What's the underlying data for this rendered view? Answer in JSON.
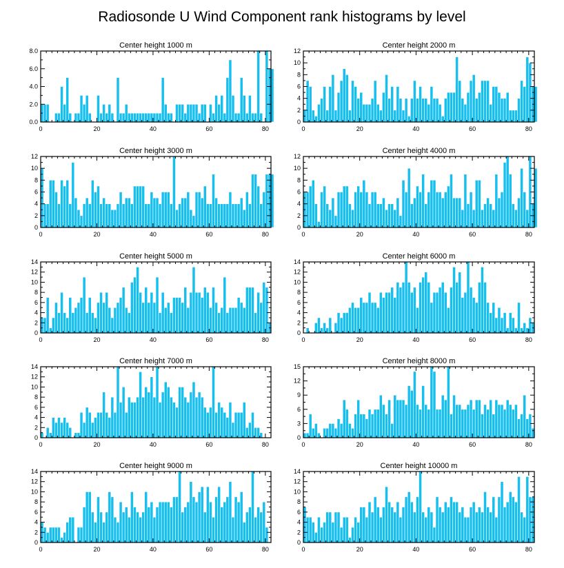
{
  "figure": {
    "title": "Radiosonde U Wind Component rank histograms by level",
    "bar_color": "#17bfee",
    "background": "#ffffff"
  },
  "chart_data": [
    {
      "type": "bar",
      "title": "Center height 1000 m",
      "xlim": [
        0,
        82
      ],
      "ylim": [
        0,
        8
      ],
      "xticks": [
        0,
        20,
        40,
        60,
        80
      ],
      "yticks": [
        0,
        2,
        4,
        6,
        8
      ],
      "ytick_labels": [
        "0.0",
        "2.0",
        "4.0",
        "6.0",
        "8.0"
      ],
      "values": [
        2,
        2,
        2,
        0,
        0,
        1,
        1,
        4,
        2,
        5,
        1,
        0,
        1,
        1,
        3,
        2,
        3,
        1,
        0,
        0,
        3,
        1,
        2,
        1,
        2,
        1,
        0,
        5,
        1,
        1,
        2,
        1,
        1,
        1,
        1,
        1,
        1,
        1,
        1,
        1,
        1,
        1,
        1,
        5,
        2,
        1,
        1,
        0,
        2,
        2,
        2,
        1,
        2,
        2,
        2,
        2,
        1,
        2,
        2,
        0,
        2,
        1,
        3,
        2,
        3,
        1,
        5,
        7,
        3,
        1,
        1,
        5,
        3,
        1,
        3,
        1,
        1,
        8,
        1,
        0,
        8,
        6,
        6
      ]
    },
    {
      "type": "bar",
      "title": "Center height 2000 m",
      "xlim": [
        0,
        82
      ],
      "ylim": [
        0,
        12
      ],
      "xticks": [
        0,
        20,
        40,
        60,
        80
      ],
      "yticks": [
        0,
        2,
        4,
        6,
        8,
        10,
        12
      ],
      "ytick_labels": [
        "0",
        "2",
        "4",
        "6",
        "8",
        "10",
        "12"
      ],
      "values": [
        2,
        7,
        6,
        2,
        1,
        3,
        4,
        6,
        2,
        6,
        8,
        2,
        5,
        7,
        9,
        8,
        2,
        7,
        6,
        4,
        5,
        3,
        3,
        3,
        4,
        7,
        3,
        2,
        5,
        8,
        4,
        6,
        2,
        6,
        4,
        2,
        4,
        1,
        4,
        7,
        4,
        6,
        4,
        4,
        3,
        6,
        4,
        4,
        3,
        1,
        4,
        5,
        5,
        5,
        11,
        7,
        4,
        3,
        5,
        7,
        8,
        4,
        5,
        7,
        7,
        7,
        3,
        6,
        6,
        5,
        4,
        4,
        5,
        2,
        2,
        2,
        4,
        7,
        6,
        11,
        10,
        6,
        6
      ]
    },
    {
      "type": "bar",
      "title": "Center height 3000 m",
      "xlim": [
        0,
        82
      ],
      "ylim": [
        0,
        12
      ],
      "xticks": [
        0,
        20,
        40,
        60,
        80
      ],
      "yticks": [
        0,
        2,
        4,
        6,
        8,
        10,
        12
      ],
      "ytick_labels": [
        "0",
        "2",
        "4",
        "6",
        "8",
        "10",
        "12"
      ],
      "values": [
        10,
        4,
        4,
        8,
        8,
        6,
        4,
        8,
        7,
        8,
        4,
        11,
        5,
        3,
        2,
        4,
        5,
        4,
        8,
        6,
        7,
        4,
        5,
        4,
        4,
        3,
        3,
        4,
        6,
        4,
        5,
        5,
        4,
        7,
        7,
        7,
        7,
        4,
        4,
        6,
        5,
        5,
        4,
        6,
        6,
        6,
        4,
        12,
        3,
        4,
        5,
        5,
        6,
        3,
        2,
        6,
        6,
        5,
        7,
        4,
        4,
        9,
        5,
        4,
        4,
        4,
        4,
        6,
        4,
        4,
        4,
        5,
        3,
        6,
        4,
        9,
        9,
        7,
        4,
        6,
        9,
        9,
        9
      ]
    },
    {
      "type": "bar",
      "title": "Center height 4000 m",
      "xlim": [
        0,
        82
      ],
      "ylim": [
        0,
        12
      ],
      "xticks": [
        0,
        20,
        40,
        60,
        80
      ],
      "yticks": [
        0,
        2,
        4,
        6,
        8,
        10,
        12
      ],
      "ytick_labels": [
        "0",
        "2",
        "4",
        "6",
        "8",
        "10",
        "12"
      ],
      "values": [
        6,
        6,
        7,
        8,
        4,
        1,
        6,
        7,
        4,
        3,
        5,
        2,
        6,
        6,
        7,
        7,
        4,
        3,
        6,
        7,
        6,
        8,
        6,
        4,
        6,
        6,
        4,
        4,
        5,
        3,
        4,
        4,
        3,
        5,
        2,
        8,
        6,
        10,
        4,
        5,
        7,
        6,
        9,
        4,
        6,
        8,
        8,
        6,
        6,
        5,
        6,
        7,
        9,
        5,
        5,
        5,
        3,
        9,
        4,
        6,
        3,
        8,
        8,
        3,
        4,
        5,
        4,
        3,
        9,
        5,
        6,
        11,
        12,
        9,
        4,
        3,
        5,
        10,
        6,
        3,
        12,
        4,
        10
      ]
    },
    {
      "type": "bar",
      "title": "Center height 5000 m",
      "xlim": [
        0,
        82
      ],
      "ylim": [
        0,
        14
      ],
      "xticks": [
        0,
        20,
        40,
        60,
        80
      ],
      "yticks": [
        0,
        2,
        4,
        6,
        8,
        10,
        12,
        14
      ],
      "ytick_labels": [
        "0",
        "2",
        "4",
        "6",
        "8",
        "10",
        "12",
        "14"
      ],
      "values": [
        3,
        3,
        7,
        1,
        3,
        6,
        4,
        8,
        4,
        3,
        7,
        4,
        5,
        6,
        7,
        11,
        4,
        7,
        4,
        3,
        6,
        8,
        6,
        8,
        5,
        3,
        5,
        6,
        7,
        9,
        5,
        4,
        10,
        11,
        13,
        8,
        6,
        9,
        6,
        8,
        6,
        11,
        4,
        8,
        5,
        6,
        4,
        7,
        7,
        7,
        6,
        9,
        5,
        8,
        13,
        8,
        8,
        7,
        9,
        8,
        5,
        9,
        6,
        4,
        5,
        11,
        4,
        5,
        5,
        5,
        7,
        6,
        5,
        9,
        9,
        9,
        4,
        8,
        6,
        10,
        9,
        2
      ]
    },
    {
      "type": "bar",
      "title": "Center height 6000 m",
      "xlim": [
        0,
        82
      ],
      "ylim": [
        0,
        14
      ],
      "xticks": [
        0,
        20,
        40,
        60,
        80
      ],
      "yticks": [
        0,
        2,
        4,
        6,
        8,
        10,
        12,
        14
      ],
      "ytick_labels": [
        "0",
        "2",
        "4",
        "6",
        "8",
        "10",
        "12",
        "14"
      ],
      "values": [
        0,
        1,
        0,
        0,
        2,
        3,
        1,
        2,
        1,
        3,
        0,
        2,
        4,
        3,
        4,
        4,
        5,
        6,
        5,
        5,
        7,
        6,
        6,
        8,
        6,
        6,
        5,
        8,
        7,
        8,
        8,
        9,
        7,
        10,
        9,
        10,
        14,
        10,
        8,
        9,
        5,
        10,
        11,
        12,
        10,
        6,
        8,
        8,
        9,
        10,
        8,
        5,
        9,
        13,
        10,
        12,
        7,
        8,
        14,
        9,
        7,
        6,
        10,
        13,
        10,
        6,
        4,
        6,
        3,
        5,
        3,
        4,
        1,
        4,
        3,
        1,
        6,
        1,
        2,
        1,
        3,
        2
      ]
    },
    {
      "type": "bar",
      "title": "Center height 7000 m",
      "xlim": [
        0,
        82
      ],
      "ylim": [
        0,
        14
      ],
      "xticks": [
        0,
        20,
        40,
        60,
        80
      ],
      "yticks": [
        0,
        2,
        4,
        6,
        8,
        10,
        12,
        14
      ],
      "ytick_labels": [
        "0",
        "2",
        "4",
        "6",
        "8",
        "10",
        "12",
        "14"
      ],
      "values": [
        1,
        0,
        2,
        1,
        4,
        3,
        4,
        3,
        4,
        3,
        2,
        0,
        1,
        1,
        5,
        3,
        6,
        5,
        3,
        4,
        5,
        5,
        9,
        5,
        4,
        8,
        5,
        14,
        7,
        10,
        5,
        8,
        7,
        7,
        8,
        13,
        8,
        10,
        9,
        12,
        8,
        14,
        7,
        9,
        11,
        10,
        8,
        7,
        6,
        10,
        10,
        8,
        7,
        9,
        11,
        8,
        9,
        8,
        6,
        5,
        6,
        14,
        5,
        7,
        6,
        5,
        4,
        7,
        3,
        5,
        5,
        5,
        7,
        2,
        3,
        5,
        2,
        2,
        1
      ]
    },
    {
      "type": "bar",
      "title": "Center height 8000 m",
      "xlim": [
        0,
        82
      ],
      "ylim": [
        0,
        15
      ],
      "xticks": [
        0,
        20,
        40,
        60,
        80
      ],
      "yticks": [
        0,
        3,
        6,
        9,
        12,
        15
      ],
      "ytick_labels": [
        "0",
        "3",
        "6",
        "9",
        "12",
        "15"
      ],
      "values": [
        1,
        1,
        5,
        2,
        3,
        1,
        0,
        2,
        2,
        3,
        3,
        2,
        4,
        3,
        8,
        6,
        3,
        2,
        5,
        8,
        5,
        5,
        4,
        6,
        5,
        6,
        6,
        9,
        7,
        5,
        8,
        3,
        9,
        8,
        8,
        8,
        7,
        11,
        10,
        14,
        7,
        6,
        11,
        7,
        6,
        15,
        14,
        6,
        6,
        9,
        8,
        15,
        5,
        9,
        7,
        7,
        6,
        6,
        7,
        8,
        6,
        8,
        8,
        5,
        7,
        6,
        8,
        5,
        8,
        7,
        7,
        6,
        8,
        7,
        6,
        7,
        4,
        5,
        9,
        4,
        5,
        2
      ]
    },
    {
      "type": "bar",
      "title": "Center height 9000 m",
      "xlim": [
        0,
        82
      ],
      "ylim": [
        0,
        14
      ],
      "xticks": [
        0,
        20,
        40,
        60,
        80
      ],
      "yticks": [
        0,
        2,
        4,
        6,
        8,
        10,
        12,
        14
      ],
      "ytick_labels": [
        "0",
        "2",
        "4",
        "6",
        "8",
        "10",
        "12",
        "14"
      ],
      "values": [
        4,
        3,
        2,
        3,
        3,
        3,
        3,
        1,
        2,
        4,
        5,
        5,
        0,
        3,
        3,
        7,
        10,
        10,
        6,
        4,
        9,
        6,
        4,
        6,
        10,
        9,
        5,
        4,
        8,
        6,
        7,
        5,
        10,
        7,
        6,
        5,
        6,
        10,
        7,
        8,
        5,
        7,
        8,
        8,
        8,
        8,
        7,
        9,
        9,
        14,
        6,
        7,
        8,
        12,
        9,
        8,
        10,
        11,
        6,
        11,
        8,
        5,
        9,
        11,
        7,
        8,
        9,
        12,
        5,
        9,
        8,
        10,
        4,
        6,
        7,
        14,
        5,
        7,
        6,
        8,
        3
      ]
    },
    {
      "type": "bar",
      "title": "Center height 10000 m",
      "xlim": [
        0,
        82
      ],
      "ylim": [
        0,
        14
      ],
      "xticks": [
        0,
        20,
        40,
        60,
        80
      ],
      "yticks": [
        0,
        2,
        4,
        6,
        8,
        10,
        12,
        14
      ],
      "ytick_labels": [
        "0",
        "2",
        "4",
        "6",
        "8",
        "10",
        "12",
        "14"
      ],
      "values": [
        7,
        5,
        5,
        4,
        2,
        5,
        3,
        4,
        6,
        6,
        4,
        6,
        6,
        3,
        5,
        5,
        1,
        3,
        5,
        4,
        7,
        7,
        5,
        8,
        6,
        9,
        7,
        5,
        7,
        11,
        8,
        7,
        6,
        8,
        5,
        7,
        9,
        10,
        8,
        6,
        9,
        14,
        6,
        5,
        7,
        6,
        3,
        9,
        7,
        6,
        8,
        7,
        9,
        8,
        8,
        6,
        7,
        5,
        5,
        7,
        8,
        6,
        7,
        6,
        10,
        7,
        6,
        9,
        5,
        9,
        12,
        7,
        8,
        10,
        9,
        8,
        13,
        6,
        5,
        13,
        9,
        9
      ]
    }
  ]
}
